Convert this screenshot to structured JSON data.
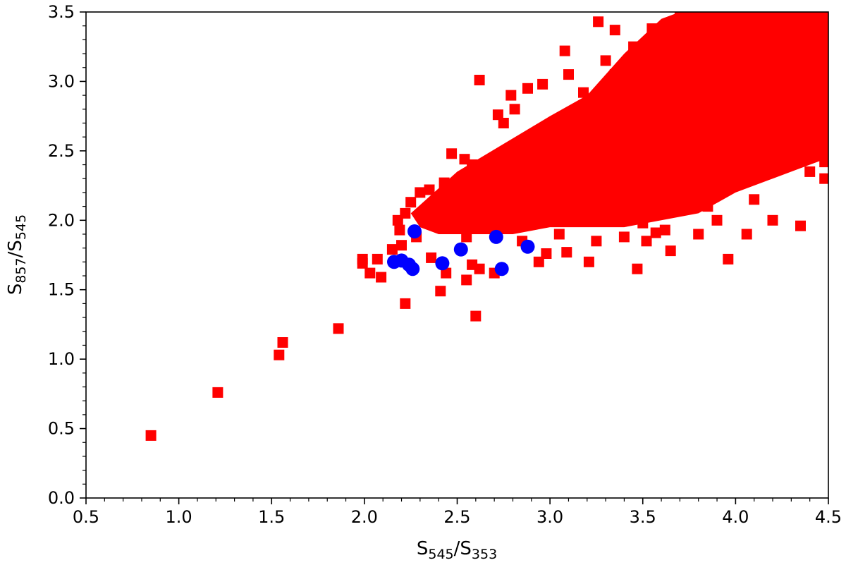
{
  "chart_data": {
    "type": "scatter",
    "title": "",
    "xlabel_main": "S",
    "xlabel_sub1": "545",
    "xlabel_mid": "/S",
    "xlabel_sub2": "353",
    "ylabel_main": "S",
    "ylabel_sub1": "857",
    "ylabel_mid": "/S",
    "ylabel_sub2": "545",
    "xlim": [
      0.5,
      4.5
    ],
    "ylim": [
      0.0,
      3.5
    ],
    "xticks": [
      "0.5",
      "1.0",
      "1.5",
      "2.0",
      "2.5",
      "3.0",
      "3.5",
      "4.0",
      "4.5"
    ],
    "yticks": [
      "0.0",
      "0.5",
      "1.0",
      "1.5",
      "2.0",
      "2.5",
      "3.0",
      "3.5"
    ],
    "grid": false,
    "dense_region": {
      "polygon": [
        [
          2.25,
          2.05
        ],
        [
          2.5,
          2.35
        ],
        [
          2.75,
          2.55
        ],
        [
          3.0,
          2.75
        ],
        [
          3.2,
          2.9
        ],
        [
          3.4,
          3.2
        ],
        [
          3.6,
          3.45
        ],
        [
          3.7,
          3.5
        ],
        [
          4.5,
          3.5
        ],
        [
          4.5,
          2.45
        ],
        [
          4.2,
          2.3
        ],
        [
          4.0,
          2.2
        ],
        [
          3.8,
          2.05
        ],
        [
          3.6,
          2.0
        ],
        [
          3.4,
          1.95
        ],
        [
          3.2,
          1.95
        ],
        [
          3.0,
          1.95
        ],
        [
          2.8,
          1.9
        ],
        [
          2.6,
          1.9
        ],
        [
          2.4,
          1.9
        ],
        [
          2.3,
          1.95
        ]
      ],
      "color": "#ff0000"
    },
    "series": [
      {
        "marker": "square",
        "color": "#ff0000",
        "points": [
          [
            0.85,
            0.45
          ],
          [
            1.21,
            0.76
          ],
          [
            1.54,
            1.03
          ],
          [
            1.56,
            1.12
          ],
          [
            1.86,
            1.22
          ],
          [
            1.99,
            1.69
          ],
          [
            1.99,
            1.72
          ],
          [
            2.03,
            1.62
          ],
          [
            2.07,
            1.72
          ],
          [
            2.09,
            1.59
          ],
          [
            2.15,
            1.79
          ],
          [
            2.22,
            1.4
          ],
          [
            2.19,
            1.93
          ],
          [
            2.18,
            2.0
          ],
          [
            2.22,
            2.05
          ],
          [
            2.25,
            2.13
          ],
          [
            2.3,
            2.2
          ],
          [
            2.41,
            1.49
          ],
          [
            2.44,
            1.62
          ],
          [
            2.55,
            1.57
          ],
          [
            2.58,
            1.68
          ],
          [
            2.6,
            1.31
          ],
          [
            2.7,
            1.62
          ],
          [
            2.62,
            1.65
          ],
          [
            2.36,
            1.73
          ],
          [
            2.43,
            2.27
          ],
          [
            2.47,
            2.48
          ],
          [
            2.54,
            2.44
          ],
          [
            2.62,
            3.01
          ],
          [
            2.68,
            2.35
          ],
          [
            2.72,
            2.76
          ],
          [
            2.79,
            2.9
          ],
          [
            2.81,
            2.8
          ],
          [
            2.96,
            2.98
          ],
          [
            3.08,
            3.22
          ],
          [
            2.94,
            1.7
          ],
          [
            2.98,
            1.76
          ],
          [
            3.09,
            1.77
          ],
          [
            3.21,
            1.7
          ],
          [
            3.22,
            2.27
          ],
          [
            3.26,
            3.43
          ],
          [
            3.35,
            3.37
          ],
          [
            3.47,
            1.65
          ],
          [
            3.52,
            1.85
          ],
          [
            3.57,
            1.91
          ],
          [
            3.65,
            1.78
          ],
          [
            3.8,
            1.9
          ],
          [
            3.9,
            2.0
          ],
          [
            3.96,
            1.72
          ],
          [
            4.06,
            1.9
          ],
          [
            4.2,
            2.0
          ],
          [
            4.35,
            1.96
          ],
          [
            4.48,
            2.3
          ],
          [
            4.48,
            2.42
          ],
          [
            3.35,
            3.05
          ],
          [
            3.18,
            2.92
          ],
          [
            2.9,
            2.6
          ],
          [
            2.95,
            2.5
          ],
          [
            2.66,
            2.25
          ],
          [
            2.35,
            2.22
          ],
          [
            2.2,
            1.82
          ],
          [
            2.28,
            1.88
          ],
          [
            2.48,
            1.95
          ],
          [
            2.55,
            1.88
          ],
          [
            2.7,
            1.95
          ],
          [
            2.85,
            1.85
          ],
          [
            3.05,
            1.9
          ],
          [
            3.25,
            1.85
          ],
          [
            3.4,
            1.88
          ],
          [
            3.62,
            1.93
          ],
          [
            3.7,
            3.48
          ],
          [
            3.45,
            3.25
          ],
          [
            3.55,
            3.38
          ],
          [
            3.3,
            3.15
          ],
          [
            3.1,
            3.05
          ],
          [
            2.88,
            2.95
          ],
          [
            2.75,
            2.7
          ],
          [
            2.58,
            2.4
          ],
          [
            2.52,
            2.3
          ],
          [
            4.05,
            2.35
          ],
          [
            4.25,
            2.4
          ],
          [
            4.4,
            2.35
          ],
          [
            4.1,
            2.15
          ],
          [
            3.85,
            2.1
          ],
          [
            3.5,
            1.98
          ],
          [
            3.75,
            3.5
          ]
        ]
      },
      {
        "marker": "circle",
        "color": "#0000ff",
        "points": [
          [
            2.16,
            1.7
          ],
          [
            2.2,
            1.71
          ],
          [
            2.24,
            1.68
          ],
          [
            2.26,
            1.65
          ],
          [
            2.27,
            1.92
          ],
          [
            2.42,
            1.69
          ],
          [
            2.52,
            1.79
          ],
          [
            2.71,
            1.88
          ],
          [
            2.74,
            1.65
          ],
          [
            2.88,
            1.81
          ]
        ]
      }
    ]
  }
}
